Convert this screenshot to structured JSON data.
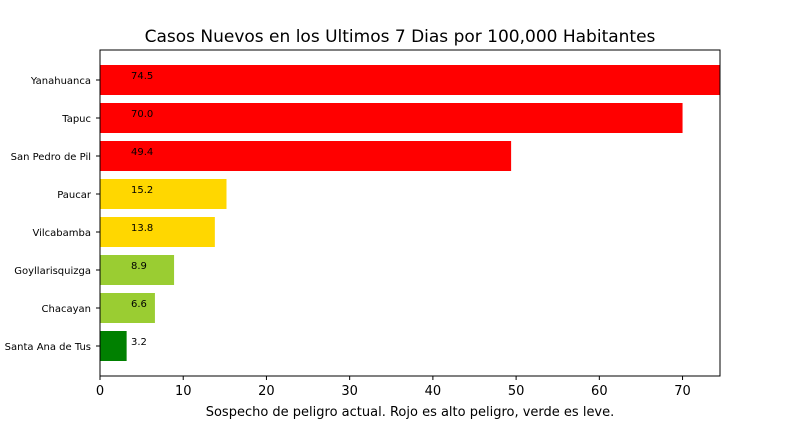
{
  "chart_data": {
    "type": "bar",
    "orientation": "horizontal",
    "title": "Casos Nuevos en los Ultimos 7 Dias por 100,000 Habitantes",
    "xlabel": "Sospecho de peligro actual. Rojo es alto peligro, verde es leve.",
    "ylabel": "",
    "xlim": [
      0,
      74.5
    ],
    "xticks": [
      0,
      10,
      20,
      30,
      40,
      50,
      60,
      70
    ],
    "grid": false,
    "categories": [
      "Yanahuanca",
      "Tapuc",
      "San Pedro de Pil",
      "Paucar",
      "Vilcabamba",
      "Goyllarisquizga",
      "Chacayan",
      "Santa Ana de Tus"
    ],
    "values": [
      74.5,
      70.0,
      49.4,
      15.2,
      13.8,
      8.9,
      6.6,
      3.2
    ],
    "value_labels": [
      "74.5",
      "70.0",
      "49.4",
      "15.2",
      "13.8",
      "8.9",
      "6.6",
      "3.2"
    ],
    "colors": [
      "#ff0000",
      "#ff0000",
      "#ff0000",
      "#ffd700",
      "#ffd700",
      "#9acd32",
      "#9acd32",
      "#008000"
    ]
  }
}
